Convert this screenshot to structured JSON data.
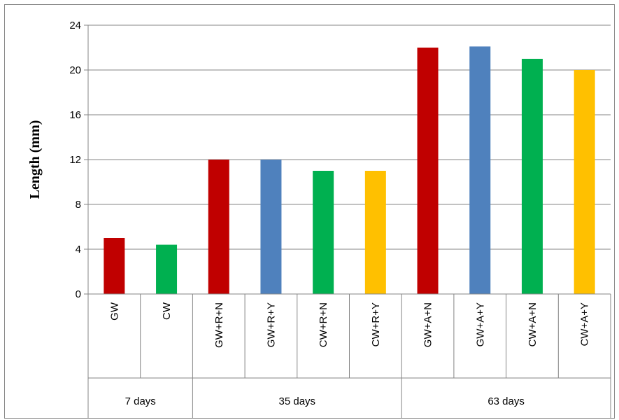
{
  "chart_data": {
    "type": "bar",
    "ylabel": "Length (mm)",
    "xlabel": "",
    "ylim": [
      0,
      24
    ],
    "yticks": [
      0,
      4,
      8,
      12,
      16,
      20,
      24
    ],
    "grid": true,
    "categories": [
      "GW",
      "CW",
      "GW+R+N",
      "GW+R+Y",
      "CW+R+N",
      "CW+R+Y",
      "GW+A+N",
      "GW+A+Y",
      "CW+A+N",
      "CW+A+Y"
    ],
    "values": [
      5,
      4.4,
      12,
      12,
      11,
      11,
      22,
      22.1,
      21,
      20
    ],
    "bar_colors": [
      "#C00000",
      "#00B050",
      "#C00000",
      "#4F81BD",
      "#00B050",
      "#FFC000",
      "#C00000",
      "#4F81BD",
      "#00B050",
      "#FFC000"
    ],
    "groups": [
      {
        "label": "7 days",
        "count": 2
      },
      {
        "label": "35 days",
        "count": 4
      },
      {
        "label": "63 days",
        "count": 4
      }
    ]
  }
}
